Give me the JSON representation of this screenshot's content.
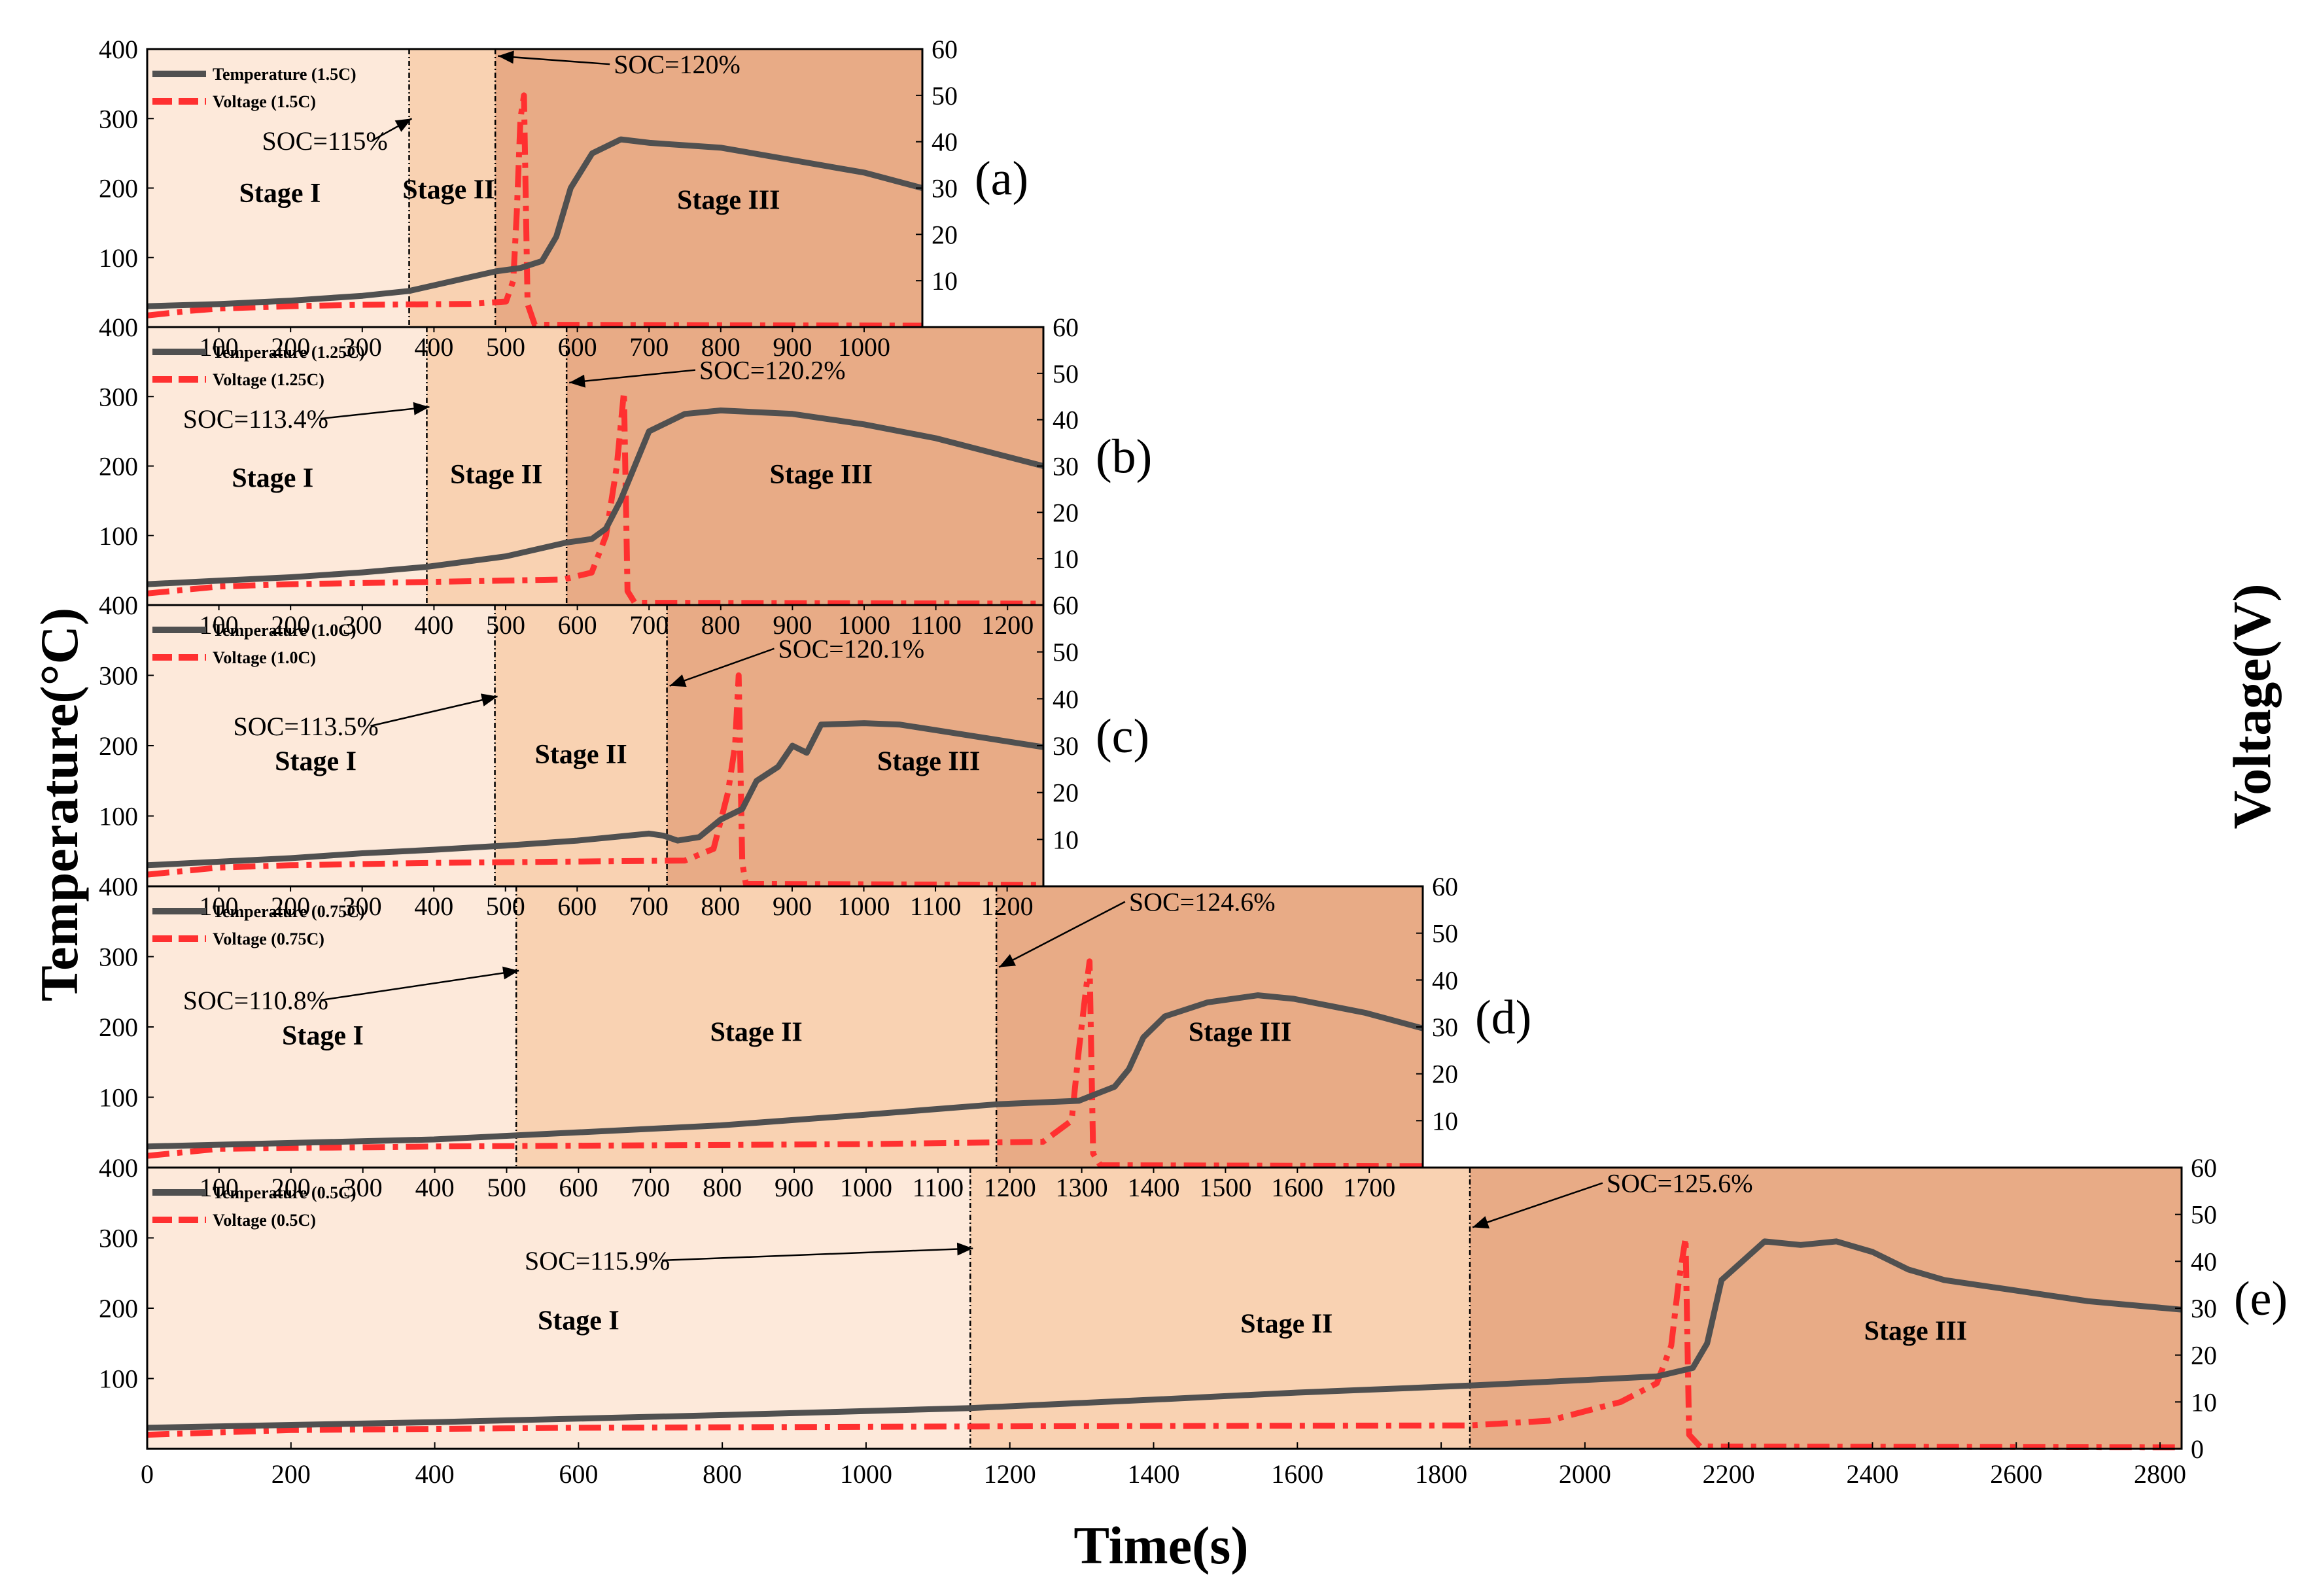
{
  "chart_data": {
    "type": "line",
    "description_axes": {
      "xlabel": "Time(s)",
      "ylabel_left": "Temperature(°C)",
      "ylabel_right": "Voltage(V)"
    },
    "colors": {
      "temperature": "#505050",
      "voltage": "#ff3030",
      "stage1": "#fde9da",
      "stage2": "#f9d2b2",
      "stage3": "#e8ab86"
    },
    "panels": [
      {
        "id": "a",
        "label": "(a)",
        "xlim": [
          0,
          1080
        ],
        "temp_ylim": [
          0,
          400
        ],
        "volt_ylim": [
          0,
          60
        ],
        "temp_ticks": [
          "100",
          "200",
          "300",
          "400"
        ],
        "volt_ticks": [
          "10",
          "20",
          "30",
          "40",
          "50",
          "60"
        ],
        "x_ticks": [],
        "stage_bounds": [
          365,
          485
        ],
        "stage_labels": [
          "Stage I",
          "Stage II",
          "Stage III"
        ],
        "stage_label_x": [
          185,
          420,
          810
        ],
        "stage_label_t": [
          180,
          185,
          170
        ],
        "legend": [
          "Temperature (1.5C)",
          "Voltage (1.5C)"
        ],
        "soc_annotations": [
          {
            "text": "SOC=115%",
            "x_text": 160,
            "t_text": 255,
            "x_arrow": 365,
            "t_arrow": 300,
            "anchor": "start"
          },
          {
            "text": "SOC=120%",
            "x_text": 650,
            "t_text": 365,
            "x_arrow": 485,
            "t_arrow": 390,
            "anchor": "start"
          }
        ],
        "temperature": [
          [
            0,
            30
          ],
          [
            100,
            33
          ],
          [
            200,
            38
          ],
          [
            300,
            45
          ],
          [
            365,
            52
          ],
          [
            485,
            80
          ],
          [
            520,
            85
          ],
          [
            550,
            95
          ],
          [
            570,
            130
          ],
          [
            590,
            200
          ],
          [
            620,
            250
          ],
          [
            660,
            270
          ],
          [
            700,
            265
          ],
          [
            800,
            258
          ],
          [
            900,
            240
          ],
          [
            1000,
            222
          ],
          [
            1080,
            200
          ]
        ],
        "voltage": [
          [
            0,
            2.5
          ],
          [
            60,
            3.5
          ],
          [
            100,
            4
          ],
          [
            200,
            4.5
          ],
          [
            300,
            4.8
          ],
          [
            450,
            5
          ],
          [
            500,
            5.5
          ],
          [
            510,
            10
          ],
          [
            515,
            25
          ],
          [
            520,
            45
          ],
          [
            525,
            50
          ],
          [
            530,
            5
          ],
          [
            540,
            0.5
          ],
          [
            1080,
            0.3
          ]
        ]
      },
      {
        "id": "b",
        "label": "(b)",
        "xlim": [
          0,
          1250
        ],
        "temp_ylim": [
          0,
          400
        ],
        "volt_ylim": [
          0,
          60
        ],
        "temp_ticks": [
          "100",
          "200",
          "300",
          "400"
        ],
        "volt_ticks": [
          "10",
          "20",
          "30",
          "40",
          "50",
          "60"
        ],
        "x_ticks": [
          "100",
          "200",
          "300",
          "400",
          "500",
          "600",
          "700",
          "800",
          "900",
          "1000"
        ],
        "stage_bounds": [
          390,
          585
        ],
        "stage_labels": [
          "Stage I",
          "Stage II",
          "Stage III"
        ],
        "stage_label_x": [
          175,
          487,
          940
        ],
        "stage_label_t": [
          170,
          175,
          175
        ],
        "legend": [
          "Temperature (1.25C)",
          "Voltage (1.25C)"
        ],
        "soc_annotations": [
          {
            "text": "SOC=113.4%",
            "x_text": 50,
            "t_text": 255,
            "x_arrow": 390,
            "t_arrow": 285,
            "anchor": "start"
          },
          {
            "text": "SOC=120.2%",
            "x_text": 770,
            "t_text": 325,
            "x_arrow": 585,
            "t_arrow": 320,
            "anchor": "start"
          }
        ],
        "temperature": [
          [
            0,
            30
          ],
          [
            100,
            35
          ],
          [
            200,
            40
          ],
          [
            300,
            47
          ],
          [
            390,
            55
          ],
          [
            500,
            70
          ],
          [
            585,
            90
          ],
          [
            620,
            95
          ],
          [
            640,
            110
          ],
          [
            660,
            150
          ],
          [
            680,
            200
          ],
          [
            700,
            250
          ],
          [
            750,
            275
          ],
          [
            800,
            280
          ],
          [
            900,
            275
          ],
          [
            1000,
            260
          ],
          [
            1100,
            240
          ],
          [
            1250,
            200
          ]
        ],
        "voltage": [
          [
            0,
            2.5
          ],
          [
            100,
            4
          ],
          [
            200,
            4.5
          ],
          [
            400,
            5
          ],
          [
            580,
            5.5
          ],
          [
            620,
            7
          ],
          [
            640,
            15
          ],
          [
            655,
            30
          ],
          [
            665,
            46
          ],
          [
            670,
            3
          ],
          [
            680,
            0.5
          ],
          [
            1250,
            0.3
          ]
        ]
      },
      {
        "id": "c",
        "label": "(c)",
        "xlim": [
          0,
          1250
        ],
        "temp_ylim": [
          0,
          400
        ],
        "volt_ylim": [
          0,
          60
        ],
        "temp_ticks": [
          "100",
          "200",
          "300",
          "400"
        ],
        "volt_ticks": [
          "10",
          "20",
          "30",
          "40",
          "50",
          "60"
        ],
        "x_ticks": [
          "100",
          "200",
          "300",
          "400",
          "500",
          "600",
          "700",
          "800",
          "900",
          "1000",
          "1100",
          "1200"
        ],
        "stage_bounds": [
          485,
          725
        ],
        "stage_labels": [
          "Stage I",
          "Stage II",
          "Stage III"
        ],
        "stage_label_x": [
          235,
          605,
          1090
        ],
        "stage_label_t": [
          165,
          175,
          165
        ],
        "legend": [
          "Temperature (1.0C)",
          "Voltage (1.0C)"
        ],
        "soc_annotations": [
          {
            "text": "SOC=113.5%",
            "x_text": 120,
            "t_text": 215,
            "x_arrow": 485,
            "t_arrow": 270,
            "anchor": "start"
          },
          {
            "text": "SOC=120.1%",
            "x_text": 880,
            "t_text": 325,
            "x_arrow": 725,
            "t_arrow": 285,
            "anchor": "start"
          }
        ],
        "temperature": [
          [
            0,
            30
          ],
          [
            100,
            35
          ],
          [
            200,
            40
          ],
          [
            300,
            47
          ],
          [
            400,
            52
          ],
          [
            500,
            58
          ],
          [
            600,
            65
          ],
          [
            700,
            75
          ],
          [
            720,
            72
          ],
          [
            740,
            65
          ],
          [
            770,
            70
          ],
          [
            800,
            95
          ],
          [
            830,
            110
          ],
          [
            850,
            150
          ],
          [
            880,
            170
          ],
          [
            900,
            200
          ],
          [
            920,
            190
          ],
          [
            940,
            230
          ],
          [
            1000,
            232
          ],
          [
            1050,
            230
          ],
          [
            1100,
            222
          ],
          [
            1250,
            198
          ]
        ],
        "voltage": [
          [
            0,
            2.5
          ],
          [
            100,
            4
          ],
          [
            200,
            4.5
          ],
          [
            400,
            5
          ],
          [
            750,
            5.5
          ],
          [
            790,
            8
          ],
          [
            810,
            20
          ],
          [
            820,
            30
          ],
          [
            825,
            45
          ],
          [
            830,
            5
          ],
          [
            835,
            0.5
          ],
          [
            1250,
            0.3
          ]
        ]
      },
      {
        "id": "d",
        "label": "(d)",
        "xlim": [
          0,
          1780
        ],
        "temp_ylim": [
          0,
          400
        ],
        "volt_ylim": [
          0,
          60
        ],
        "temp_ticks": [
          "100",
          "200",
          "300",
          "400"
        ],
        "volt_ticks": [
          "10",
          "20",
          "30",
          "40",
          "50",
          "60"
        ],
        "x_ticks": [
          "100",
          "200",
          "300",
          "400",
          "500",
          "600",
          "700",
          "800",
          "900",
          "1000",
          "1100",
          "1200"
        ],
        "stage_bounds": [
          515,
          1185
        ],
        "stage_labels": [
          "Stage I",
          "Stage II",
          "Stage III"
        ],
        "stage_label_x": [
          245,
          850,
          1525
        ],
        "stage_label_t": [
          175,
          180,
          180
        ],
        "legend": [
          "Temperature (0.75C)",
          "Voltage (0.75C)"
        ],
        "soc_annotations": [
          {
            "text": "SOC=110.8%",
            "x_text": 50,
            "t_text": 225,
            "x_arrow": 515,
            "t_arrow": 280,
            "anchor": "start"
          },
          {
            "text": "SOC=124.6%",
            "x_text": 1370,
            "t_text": 365,
            "x_arrow": 1185,
            "t_arrow": 285,
            "anchor": "start"
          }
        ],
        "temperature": [
          [
            0,
            30
          ],
          [
            200,
            35
          ],
          [
            400,
            40
          ],
          [
            600,
            50
          ],
          [
            800,
            60
          ],
          [
            1000,
            75
          ],
          [
            1185,
            90
          ],
          [
            1300,
            95
          ],
          [
            1350,
            115
          ],
          [
            1370,
            140
          ],
          [
            1390,
            185
          ],
          [
            1420,
            215
          ],
          [
            1480,
            235
          ],
          [
            1550,
            245
          ],
          [
            1600,
            240
          ],
          [
            1700,
            220
          ],
          [
            1780,
            198
          ]
        ],
        "voltage": [
          [
            0,
            2.5
          ],
          [
            100,
            4
          ],
          [
            400,
            4.5
          ],
          [
            1000,
            5
          ],
          [
            1250,
            5.5
          ],
          [
            1290,
            10
          ],
          [
            1300,
            25
          ],
          [
            1310,
            38
          ],
          [
            1315,
            44
          ],
          [
            1320,
            3
          ],
          [
            1330,
            0.5
          ],
          [
            1780,
            0.3
          ]
        ]
      },
      {
        "id": "e",
        "label": "(e)",
        "xlim": [
          0,
          2830
        ],
        "temp_ylim": [
          0,
          400
        ],
        "volt_ylim": [
          0,
          60
        ],
        "temp_ticks": [
          "100",
          "200",
          "300",
          "400"
        ],
        "volt_ticks": [
          "0",
          "10",
          "20",
          "30",
          "40",
          "50",
          "60"
        ],
        "x_ticks": [
          "100",
          "200",
          "300",
          "400",
          "500",
          "600",
          "700",
          "800",
          "900",
          "1000",
          "1100",
          "1200",
          "1300",
          "1400",
          "1500",
          "1600",
          "1700"
        ],
        "x_ticks_values": [
          100,
          200,
          300,
          400,
          500,
          600,
          700,
          800,
          900,
          1000,
          1100,
          1200,
          1300,
          1400,
          1500,
          1600,
          1700
        ],
        "bottom_ticks": [
          "0",
          "200",
          "400",
          "600",
          "800",
          "1000",
          "1200",
          "1400",
          "1600",
          "1800",
          "2000",
          "2200",
          "2400",
          "2600",
          "2800"
        ],
        "stage_bounds": [
          1145,
          1840
        ],
        "stage_labels": [
          "Stage I",
          "Stage II",
          "Stage III"
        ],
        "stage_label_x": [
          600,
          1585,
          2460
        ],
        "stage_label_t": [
          170,
          165,
          155
        ],
        "legend": [
          "Temperature (0.5C)",
          "Voltage (0.5C)"
        ],
        "soc_annotations": [
          {
            "text": "SOC=115.9%",
            "x_text": 525,
            "t_text": 255,
            "x_arrow": 1145,
            "t_arrow": 285,
            "anchor": "start"
          },
          {
            "text": "SOC=125.6%",
            "x_text": 2030,
            "t_text": 365,
            "x_arrow": 1840,
            "t_arrow": 315,
            "anchor": "start"
          }
        ],
        "temperature": [
          [
            0,
            30
          ],
          [
            400,
            38
          ],
          [
            800,
            48
          ],
          [
            1145,
            58
          ],
          [
            1400,
            70
          ],
          [
            1600,
            80
          ],
          [
            1840,
            90
          ],
          [
            2000,
            98
          ],
          [
            2100,
            103
          ],
          [
            2150,
            115
          ],
          [
            2170,
            150
          ],
          [
            2190,
            240
          ],
          [
            2250,
            295
          ],
          [
            2300,
            290
          ],
          [
            2350,
            295
          ],
          [
            2400,
            280
          ],
          [
            2450,
            255
          ],
          [
            2500,
            240
          ],
          [
            2600,
            225
          ],
          [
            2700,
            210
          ],
          [
            2830,
            198
          ]
        ],
        "voltage": [
          [
            0,
            3
          ],
          [
            200,
            4
          ],
          [
            600,
            4.5
          ],
          [
            1200,
            4.8
          ],
          [
            1840,
            5
          ],
          [
            1950,
            6
          ],
          [
            2050,
            10
          ],
          [
            2100,
            14
          ],
          [
            2120,
            22
          ],
          [
            2130,
            35
          ],
          [
            2140,
            45
          ],
          [
            2145,
            3
          ],
          [
            2160,
            0.5
          ],
          [
            2830,
            0.3
          ]
        ]
      }
    ]
  }
}
